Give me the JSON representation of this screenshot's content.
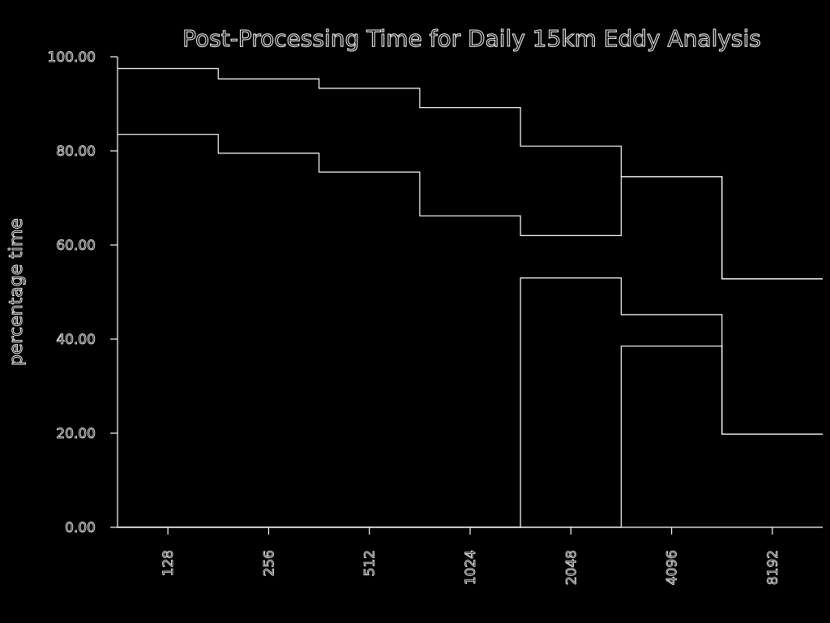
{
  "colors": {
    "background": "#000000",
    "foreground": "#ffffff"
  },
  "chart_data": {
    "type": "area",
    "stacked": true,
    "title": "Post-Processing Time for Daily 15km Eddy Analysis",
    "xlabel": "",
    "ylabel": "percentage time",
    "categories": [
      "128",
      "256",
      "512",
      "1024",
      "2048",
      "4096",
      "8192"
    ],
    "ylim": [
      0,
      100
    ],
    "yticks": [
      "0.00",
      "20.00",
      "40.00",
      "60.00",
      "80.00",
      "100.00"
    ],
    "grid": false,
    "legend": "none",
    "series": [
      {
        "values": [
          0,
          0,
          0,
          0,
          0,
          38.5,
          19.8
        ]
      },
      {
        "values": [
          0,
          0,
          0,
          0,
          53.0,
          45.2,
          19.8
        ]
      },
      {
        "values": [
          83.5,
          79.5,
          75.5,
          66.2,
          62.0,
          74.5,
          52.8
        ]
      },
      {
        "values": [
          97.5,
          95.3,
          93.3,
          89.2,
          81.0,
          74.5,
          52.8
        ]
      }
    ]
  }
}
